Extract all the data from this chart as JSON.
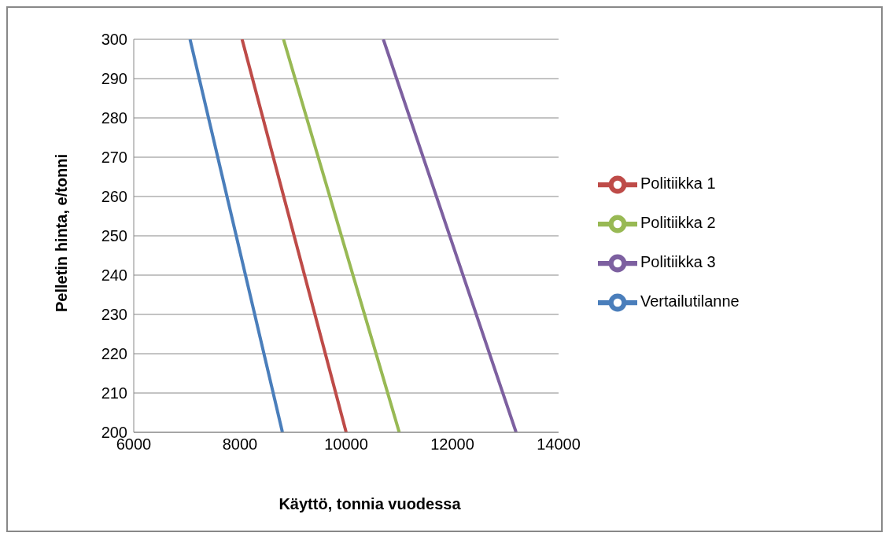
{
  "chart_data": {
    "type": "line",
    "xlabel": "Käyttö, tonnia vuodessa",
    "ylabel": "Pelletin hinta, e/tonni",
    "series": [
      {
        "name": "Vertailutilanne",
        "color": "#4a7ebb",
        "x": [
          8800,
          7060
        ],
        "values": [
          200,
          300
        ]
      },
      {
        "name": "Politiikka 1",
        "color": "#be4b48",
        "x": [
          10000,
          8040
        ],
        "values": [
          200,
          300
        ]
      },
      {
        "name": "Politiikka 2",
        "color": "#98b954",
        "x": [
          11000,
          8820
        ],
        "values": [
          200,
          300
        ]
      },
      {
        "name": "Politiikka 3",
        "color": "#7d60a0",
        "x": [
          13200,
          10700
        ],
        "values": [
          200,
          300
        ]
      }
    ],
    "xlim": [
      6000,
      14000
    ],
    "xticks": [
      6000,
      8000,
      10000,
      12000,
      14000
    ],
    "ylim": [
      200,
      300
    ],
    "yticks": [
      200,
      210,
      220,
      230,
      240,
      250,
      260,
      270,
      280,
      290,
      300
    ],
    "grid": "y",
    "legend": "right",
    "marker": "none",
    "line_style": "solid"
  }
}
